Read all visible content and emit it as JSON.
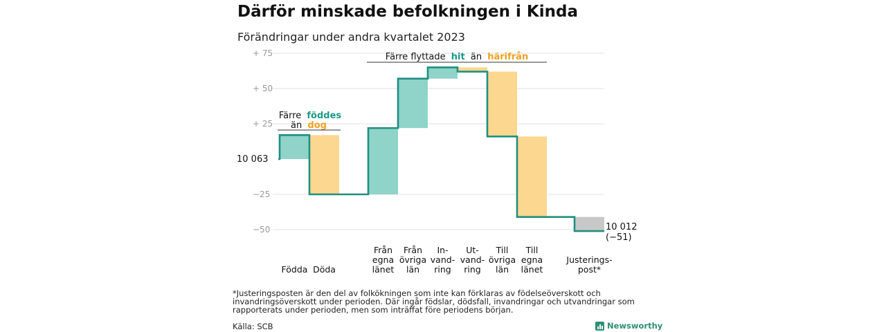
{
  "title": "Därför minskade befolkningen i Kinda",
  "subtitle": "Förändringar under andra kvartalet 2023",
  "chart_data": {
    "type": "waterfall",
    "start_value": 10063,
    "start_label": "10  063",
    "end_label_line1": "10 012",
    "end_label_line2": "(−51)",
    "yticks": [
      {
        "value": 75,
        "label": "+  75"
      },
      {
        "value": 50,
        "label": "+  50"
      },
      {
        "value": 25,
        "label": "+  25"
      },
      {
        "value": -25,
        "label": "−25"
      },
      {
        "value": -50,
        "label": "−50"
      }
    ],
    "ylim": [
      -55,
      78
    ],
    "steps": [
      {
        "name": "Födda",
        "label_lines": [
          "Födda"
        ],
        "delta": 17,
        "color": "#8fd3c9"
      },
      {
        "name": "Döda",
        "label_lines": [
          "Döda"
        ],
        "delta": -42,
        "color": "#fcd78f"
      },
      {
        "name": "Från egna länet",
        "label_lines": [
          "Från",
          "egna",
          "länet"
        ],
        "delta": 47,
        "color": "#8fd3c9"
      },
      {
        "name": "Från övriga län",
        "label_lines": [
          "Från",
          "övriga",
          "län"
        ],
        "delta": 35,
        "color": "#8fd3c9"
      },
      {
        "name": "In-vandring",
        "label_lines": [
          "In-",
          "vand-",
          "ring"
        ],
        "delta": 8,
        "color": "#8fd3c9"
      },
      {
        "name": "Ut-vandring",
        "label_lines": [
          "Ut-",
          "vand-",
          "ring"
        ],
        "delta": -3,
        "color": "#fcd78f"
      },
      {
        "name": "Till övriga län",
        "label_lines": [
          "Till",
          "övriga",
          "län"
        ],
        "delta": -46,
        "color": "#fcd78f"
      },
      {
        "name": "Till egna länet",
        "label_lines": [
          "Till",
          "egna",
          "länet"
        ],
        "delta": -57,
        "color": "#fcd78f"
      },
      {
        "name": "Justeringspost*",
        "label_lines": [
          "Justerings-",
          "post*"
        ],
        "delta": -10,
        "color": "#c8c8c8"
      }
    ],
    "annotations": [
      {
        "id": "birth",
        "line1": "Färre",
        "line1_em": "föddes",
        "line2": "än",
        "line2_em": "dog"
      },
      {
        "id": "move",
        "line1": "Färre flyttade",
        "em1": "hit",
        "mid": "än",
        "em2": "härifrån"
      }
    ],
    "colors": {
      "line": "#1f8f80",
      "positive": "#8fd3c9",
      "negative": "#fcd78f",
      "adjustment": "#c8c8c8",
      "grid": "#e2e2e2"
    }
  },
  "footnote": "*Justeringsposten är den del av folkökningen som inte kan förklaras av födelseöverskott och invandringsöverskott under perioden. Där ingår födslar, dödsfall, invandringar och utvandringar som rapporterats under perioden, men som inträffat före periodens början.",
  "source": "Källa: SCB",
  "brand": {
    "name": "Newsworthy",
    "icon": "bar-chart-logo-icon"
  }
}
